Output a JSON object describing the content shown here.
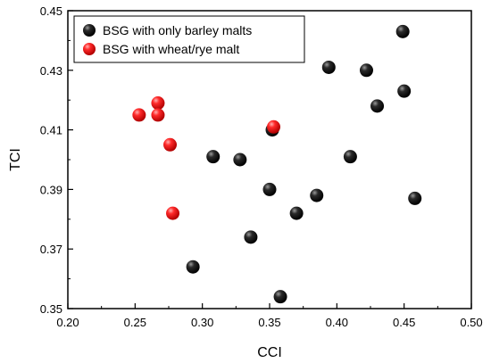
{
  "chart_data": {
    "type": "scatter",
    "title": "",
    "xlabel": "CCI",
    "ylabel": "TCI",
    "xlim": [
      0.2,
      0.5
    ],
    "ylim": [
      0.35,
      0.45
    ],
    "xticks": [
      "0.20",
      "0.25",
      "0.30",
      "0.35",
      "0.40",
      "0.45",
      "0.50"
    ],
    "yticks": [
      "0.35",
      "0.37",
      "0.39",
      "0.41",
      "0.43",
      "0.45"
    ],
    "grid": false,
    "legend_position": "top-left",
    "series": [
      {
        "name": "BSG with only barley malts",
        "color": "#000000",
        "points": [
          {
            "x": 0.449,
            "y": 0.443
          },
          {
            "x": 0.394,
            "y": 0.431
          },
          {
            "x": 0.422,
            "y": 0.43
          },
          {
            "x": 0.45,
            "y": 0.423
          },
          {
            "x": 0.43,
            "y": 0.418
          },
          {
            "x": 0.352,
            "y": 0.41
          },
          {
            "x": 0.308,
            "y": 0.401
          },
          {
            "x": 0.328,
            "y": 0.4
          },
          {
            "x": 0.41,
            "y": 0.401
          },
          {
            "x": 0.35,
            "y": 0.39
          },
          {
            "x": 0.385,
            "y": 0.388
          },
          {
            "x": 0.458,
            "y": 0.387
          },
          {
            "x": 0.37,
            "y": 0.382
          },
          {
            "x": 0.336,
            "y": 0.374
          },
          {
            "x": 0.293,
            "y": 0.364
          },
          {
            "x": 0.358,
            "y": 0.354
          }
        ]
      },
      {
        "name": "BSG with wheat/rye malt",
        "color": "#e8141c",
        "points": [
          {
            "x": 0.267,
            "y": 0.419
          },
          {
            "x": 0.253,
            "y": 0.415
          },
          {
            "x": 0.267,
            "y": 0.415
          },
          {
            "x": 0.353,
            "y": 0.411
          },
          {
            "x": 0.276,
            "y": 0.405
          },
          {
            "x": 0.278,
            "y": 0.382
          }
        ]
      }
    ]
  }
}
